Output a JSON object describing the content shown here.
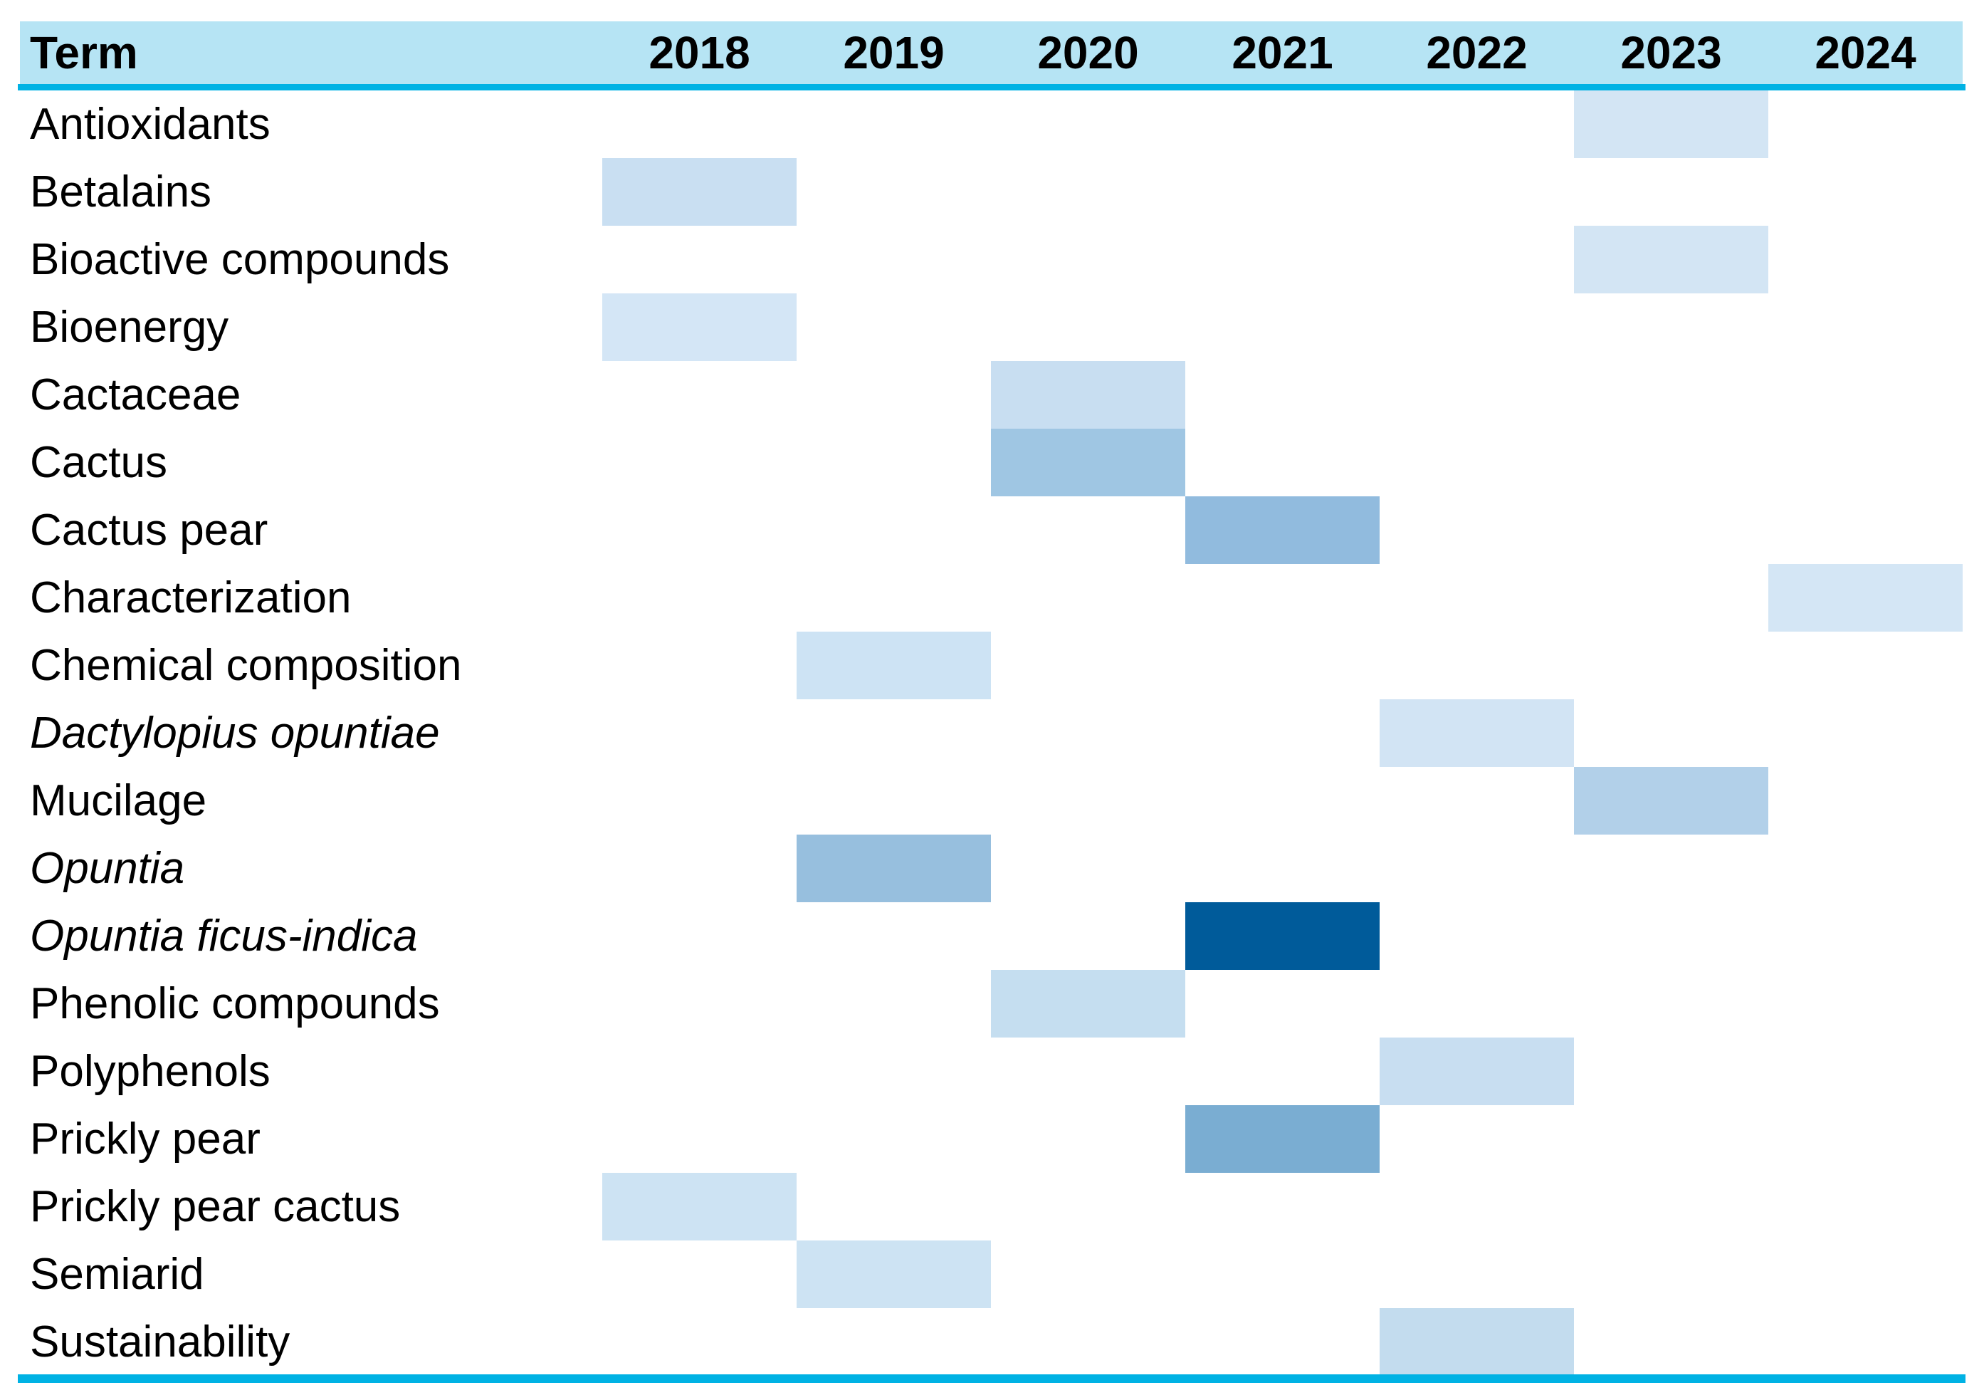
{
  "table": {
    "term_header": "Term",
    "years": [
      "2018",
      "2019",
      "2020",
      "2021",
      "2022",
      "2023",
      "2024"
    ],
    "rows": [
      {
        "term": "Antioxidants",
        "italic": false,
        "cells": {
          "2023": {
            "color": "#d3e5f4",
            "level": 1
          }
        }
      },
      {
        "term": "Betalains",
        "italic": false,
        "cells": {
          "2018": {
            "color": "#c9dff2",
            "level": 2
          }
        }
      },
      {
        "term": "Bioactive compounds",
        "italic": false,
        "cells": {
          "2023": {
            "color": "#d3e5f4",
            "level": 1
          }
        }
      },
      {
        "term": "Bioenergy",
        "italic": false,
        "cells": {
          "2018": {
            "color": "#d4e6f6",
            "level": 1
          }
        }
      },
      {
        "term": "Cactaceae",
        "italic": false,
        "cells": {
          "2020": {
            "color": "#c8def1",
            "level": 2
          }
        }
      },
      {
        "term": "Cactus",
        "italic": false,
        "cells": {
          "2020": {
            "color": "#9fc6e3",
            "level": 4
          }
        }
      },
      {
        "term": "Cactus pear",
        "italic": false,
        "cells": {
          "2021": {
            "color": "#91bbde",
            "level": 5
          }
        }
      },
      {
        "term": "Characterization",
        "italic": false,
        "cells": {
          "2024": {
            "color": "#d4e6f5",
            "level": 1
          }
        }
      },
      {
        "term": "Chemical composition",
        "italic": false,
        "cells": {
          "2019": {
            "color": "#cde3f4",
            "level": 1
          }
        }
      },
      {
        "term": "Dactylopius opuntiae",
        "italic": true,
        "cells": {
          "2022": {
            "color": "#d2e4f4",
            "level": 1
          }
        }
      },
      {
        "term": "Mucilage",
        "italic": false,
        "cells": {
          "2023": {
            "color": "#b2d0e9",
            "level": 3
          }
        }
      },
      {
        "term": "Opuntia",
        "italic": true,
        "cells": {
          "2019": {
            "color": "#97bfde",
            "level": 4
          }
        }
      },
      {
        "term": "Opuntia ficus-indica",
        "italic": true,
        "cells": {
          "2021": {
            "color": "#005b9a",
            "level": 7
          }
        }
      },
      {
        "term": "Phenolic compounds",
        "italic": false,
        "cells": {
          "2020": {
            "color": "#c5def0",
            "level": 2
          }
        }
      },
      {
        "term": "Polyphenols",
        "italic": false,
        "cells": {
          "2022": {
            "color": "#c8def1",
            "level": 2
          }
        }
      },
      {
        "term": "Prickly pear",
        "italic": false,
        "cells": {
          "2021": {
            "color": "#7aadd2",
            "level": 6
          }
        }
      },
      {
        "term": "Prickly pear cactus",
        "italic": false,
        "cells": {
          "2018": {
            "color": "#cde3f3",
            "level": 1
          }
        }
      },
      {
        "term": "Semiarid",
        "italic": false,
        "cells": {
          "2019": {
            "color": "#cde3f3",
            "level": 1
          }
        }
      },
      {
        "term": "Sustainability",
        "italic": false,
        "cells": {
          "2022": {
            "color": "#c3dcee",
            "level": 2
          }
        }
      }
    ]
  },
  "colors": {
    "header_background": "#b6e4f4",
    "rule_cyan": "#00b2e4",
    "text": "#000000",
    "page_background": "#ffffff",
    "heatmap_scale_light_to_dark": [
      "#d4e6f6",
      "#c9dff2",
      "#b2d0e9",
      "#9fc6e3",
      "#91bbde",
      "#7aadd2",
      "#005b9a"
    ]
  },
  "chart_data": {
    "type": "heatmap",
    "title": "",
    "xlabel": "",
    "ylabel": "Term",
    "x": [
      "2018",
      "2019",
      "2020",
      "2021",
      "2022",
      "2023",
      "2024"
    ],
    "y": [
      "Antioxidants",
      "Betalains",
      "Bioactive compounds",
      "Bioenergy",
      "Cactaceae",
      "Cactus",
      "Cactus pear",
      "Characterization",
      "Chemical composition",
      "Dactylopius opuntiae",
      "Mucilage",
      "Opuntia",
      "Opuntia ficus-indica",
      "Phenolic compounds",
      "Polyphenols",
      "Prickly pear",
      "Prickly pear cactus",
      "Semiarid",
      "Sustainability"
    ],
    "cells": [
      {
        "term": "Antioxidants",
        "year": "2023",
        "intensity_level": 1,
        "color": "#d3e5f4"
      },
      {
        "term": "Betalains",
        "year": "2018",
        "intensity_level": 2,
        "color": "#c9dff2"
      },
      {
        "term": "Bioactive compounds",
        "year": "2023",
        "intensity_level": 1,
        "color": "#d3e5f4"
      },
      {
        "term": "Bioenergy",
        "year": "2018",
        "intensity_level": 1,
        "color": "#d4e6f6"
      },
      {
        "term": "Cactaceae",
        "year": "2020",
        "intensity_level": 2,
        "color": "#c8def1"
      },
      {
        "term": "Cactus",
        "year": "2020",
        "intensity_level": 4,
        "color": "#9fc6e3"
      },
      {
        "term": "Cactus pear",
        "year": "2021",
        "intensity_level": 5,
        "color": "#91bbde"
      },
      {
        "term": "Characterization",
        "year": "2024",
        "intensity_level": 1,
        "color": "#d4e6f5"
      },
      {
        "term": "Chemical composition",
        "year": "2019",
        "intensity_level": 1,
        "color": "#cde3f4"
      },
      {
        "term": "Dactylopius opuntiae",
        "year": "2022",
        "intensity_level": 1,
        "color": "#d2e4f4"
      },
      {
        "term": "Mucilage",
        "year": "2023",
        "intensity_level": 3,
        "color": "#b2d0e9"
      },
      {
        "term": "Opuntia",
        "year": "2019",
        "intensity_level": 4,
        "color": "#97bfde"
      },
      {
        "term": "Opuntia ficus-indica",
        "year": "2021",
        "intensity_level": 7,
        "color": "#005b9a"
      },
      {
        "term": "Phenolic compounds",
        "year": "2020",
        "intensity_level": 2,
        "color": "#c5def0"
      },
      {
        "term": "Polyphenols",
        "year": "2022",
        "intensity_level": 2,
        "color": "#c8def1"
      },
      {
        "term": "Prickly pear",
        "year": "2021",
        "intensity_level": 6,
        "color": "#7aadd2"
      },
      {
        "term": "Prickly pear cactus",
        "year": "2018",
        "intensity_level": 1,
        "color": "#cde3f3"
      },
      {
        "term": "Semiarid",
        "year": "2019",
        "intensity_level": 1,
        "color": "#cde3f3"
      },
      {
        "term": "Sustainability",
        "year": "2022",
        "intensity_level": 2,
        "color": "#c3dcee"
      }
    ],
    "legend": "none",
    "grid": false
  }
}
